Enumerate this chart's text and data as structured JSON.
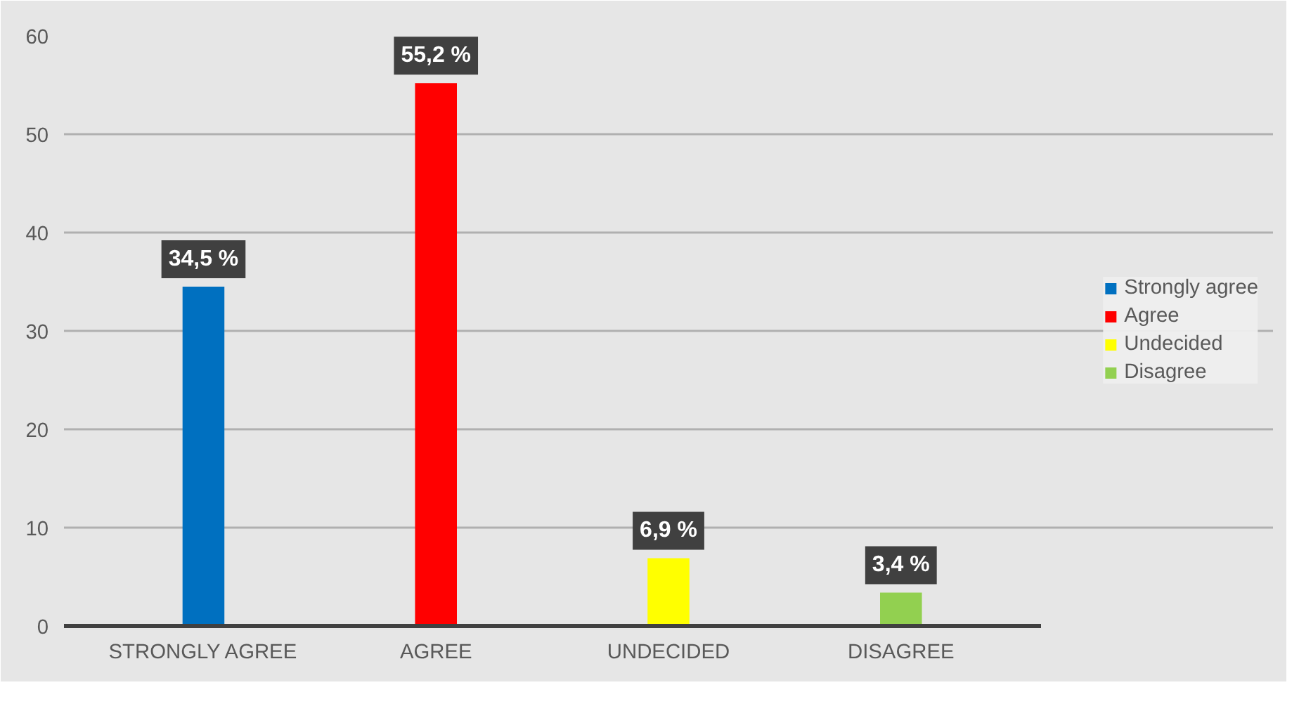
{
  "chart_data": {
    "type": "bar",
    "categories": [
      "STRONGLY AGREE",
      "AGREE",
      "UNDECIDED",
      "DISAGREE"
    ],
    "series": [
      {
        "name": "Strongly agree",
        "color": "#0070c0",
        "values": [
          34.5,
          null,
          null,
          null
        ],
        "value_labels": [
          "34,5 %",
          null,
          null,
          null
        ]
      },
      {
        "name": "Agree",
        "color": "#ff0000",
        "values": [
          null,
          55.2,
          null,
          null
        ],
        "value_labels": [
          null,
          "55,2 %",
          null,
          null
        ]
      },
      {
        "name": "Undecided",
        "color": "#ffff00",
        "values": [
          null,
          null,
          6.9,
          null
        ],
        "value_labels": [
          null,
          null,
          "6,9 %",
          null
        ]
      },
      {
        "name": "Disagree",
        "color": "#92d050",
        "values": [
          null,
          null,
          null,
          3.4
        ],
        "value_labels": [
          null,
          null,
          null,
          "3,4 %"
        ]
      }
    ],
    "ylim": [
      0,
      60
    ],
    "yticks": [
      0,
      10,
      20,
      30,
      40,
      50,
      60
    ],
    "grid": "y",
    "legend": "right"
  }
}
